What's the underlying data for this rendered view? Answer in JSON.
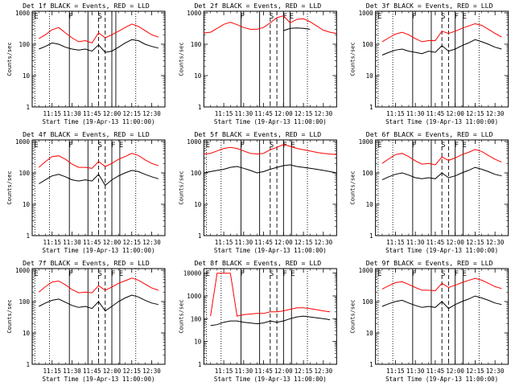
{
  "page": {
    "title": ""
  },
  "colors": {
    "events": "#000000",
    "lld": "#ff0000",
    "axis": "#000000"
  },
  "shared_axes": {
    "xlabel": "Start Time (19-Apr-13 11:00:00)",
    "ylabel": "Counts/sec",
    "x_tick_labels": [
      "11:15",
      "11:30",
      "11:45",
      "12:00",
      "12:15",
      "12:30"
    ],
    "x_range_minutes": [
      0,
      100
    ],
    "y_scale": "log",
    "y_tick_labels": [
      "1",
      "10",
      "100",
      "1000"
    ],
    "y_tick_labels_det8": [
      "1",
      "10",
      "100",
      "1000",
      "10000"
    ]
  },
  "chart_data": [
    {
      "type": "line",
      "title": "Det 1f BLACK = Events, RED = LLD",
      "xlabel": "Start Time (19-Apr-13 11:00:00)",
      "ylabel": "Counts/sec",
      "x": [
        5,
        10,
        15,
        20,
        25,
        30,
        35,
        40,
        45,
        50,
        55,
        60,
        65,
        70,
        75,
        80,
        85,
        90,
        95
      ],
      "series": [
        {
          "name": "Events",
          "color": "#000000",
          "values": [
            70,
            85,
            110,
            100,
            80,
            70,
            65,
            70,
            60,
            95,
            55,
            60,
            80,
            110,
            140,
            130,
            100,
            85,
            75
          ]
        },
        {
          "name": "LLD",
          "color": "#ff0000",
          "values": [
            150,
            200,
            290,
            340,
            230,
            160,
            120,
            130,
            110,
            230,
            160,
            200,
            260,
            340,
            440,
            370,
            270,
            200,
            170
          ]
        }
      ],
      "markers": [
        {
          "label": "E",
          "x": 2,
          "style": "dotted"
        },
        {
          "label": "",
          "x": 13,
          "style": "dotted"
        },
        {
          "label": "F",
          "x": 28,
          "style": "solid"
        },
        {
          "label": "",
          "x": 42,
          "style": "solid"
        },
        {
          "label": "S",
          "x": 50,
          "style": "dashed"
        },
        {
          "label": "",
          "x": 55,
          "style": "dashed"
        },
        {
          "label": "",
          "x": 60,
          "style": "solid"
        },
        {
          "label": "",
          "x": 63,
          "style": "solid"
        },
        {
          "label": "",
          "x": 78,
          "style": "dotted"
        }
      ]
    },
    {
      "type": "line",
      "title": "Det 2f BLACK = Events, RED = LLD",
      "xlabel": "Start Time (19-Apr-13 11:00:00)",
      "ylabel": "Counts/sec",
      "x": [
        0,
        5,
        10,
        15,
        20,
        25,
        30,
        35,
        40,
        45,
        50,
        55,
        60,
        65,
        70,
        75,
        80,
        85,
        90,
        95,
        100
      ],
      "series": [
        {
          "name": "Events",
          "color": "#000000",
          "values": [
            0,
            0,
            0,
            0,
            0,
            0,
            0,
            0,
            0,
            0,
            0,
            0,
            270,
            320,
            330,
            320,
            300,
            0,
            0,
            0,
            0
          ]
        },
        {
          "name": "LLD",
          "color": "#ff0000",
          "values": [
            230,
            240,
            320,
            430,
            500,
            420,
            340,
            300,
            300,
            340,
            480,
            700,
            800,
            480,
            620,
            650,
            520,
            380,
            280,
            240,
            220
          ]
        }
      ],
      "markers": [
        {
          "label": "F",
          "x": 28,
          "style": "solid"
        },
        {
          "label": "",
          "x": 42,
          "style": "solid"
        },
        {
          "label": "S",
          "x": 50,
          "style": "dashed"
        },
        {
          "label": "",
          "x": 55,
          "style": "dashed"
        },
        {
          "label": "F",
          "x": 60,
          "style": "solid"
        },
        {
          "label": "E",
          "x": 65,
          "style": "solid"
        },
        {
          "label": "",
          "x": 78,
          "style": "dotted"
        }
      ]
    },
    {
      "type": "line",
      "title": "Det 3f BLACK = Events, RED = LLD",
      "xlabel": "Start Time (19-Apr-13 11:00:00)",
      "ylabel": "Counts/sec",
      "x": [
        5,
        10,
        15,
        20,
        25,
        30,
        35,
        40,
        45,
        50,
        55,
        60,
        65,
        70,
        75,
        80,
        85,
        90,
        95
      ],
      "series": [
        {
          "name": "Events",
          "color": "#000000",
          "values": [
            45,
            55,
            65,
            70,
            60,
            55,
            50,
            60,
            55,
            90,
            60,
            70,
            90,
            110,
            140,
            120,
            100,
            80,
            70
          ]
        },
        {
          "name": "LLD",
          "color": "#ff0000",
          "values": [
            120,
            160,
            210,
            240,
            200,
            150,
            120,
            130,
            130,
            260,
            220,
            260,
            320,
            380,
            450,
            400,
            300,
            220,
            170
          ]
        }
      ],
      "markers": [
        {
          "label": "E",
          "x": 2,
          "style": "dotted"
        },
        {
          "label": "",
          "x": 13,
          "style": "dotted"
        },
        {
          "label": "F",
          "x": 28,
          "style": "solid"
        },
        {
          "label": "",
          "x": 42,
          "style": "solid"
        },
        {
          "label": "S",
          "x": 50,
          "style": "dashed"
        },
        {
          "label": "",
          "x": 55,
          "style": "dashed"
        },
        {
          "label": "F",
          "x": 60,
          "style": "solid"
        },
        {
          "label": "E",
          "x": 66,
          "style": "solid"
        },
        {
          "label": "",
          "x": 78,
          "style": "dotted"
        }
      ]
    },
    {
      "type": "line",
      "title": "Det 4f BLACK = Events, RED = LLD",
      "xlabel": "Start Time (19-Apr-13 11:00:00)",
      "ylabel": "Counts/sec",
      "x": [
        5,
        10,
        15,
        20,
        25,
        30,
        35,
        40,
        45,
        50,
        55,
        60,
        65,
        70,
        75,
        80,
        85,
        90,
        95
      ],
      "series": [
        {
          "name": "Events",
          "color": "#000000",
          "values": [
            45,
            60,
            80,
            90,
            75,
            60,
            55,
            60,
            55,
            90,
            40,
            60,
            80,
            100,
            120,
            110,
            90,
            75,
            65
          ]
        },
        {
          "name": "LLD",
          "color": "#ff0000",
          "values": [
            150,
            230,
            330,
            350,
            270,
            190,
            150,
            150,
            140,
            230,
            160,
            200,
            270,
            330,
            420,
            360,
            260,
            200,
            170
          ]
        }
      ],
      "markers": [
        {
          "label": "E",
          "x": 2,
          "style": "dotted"
        },
        {
          "label": "",
          "x": 13,
          "style": "dotted"
        },
        {
          "label": "F",
          "x": 28,
          "style": "solid"
        },
        {
          "label": "",
          "x": 42,
          "style": "solid"
        },
        {
          "label": "S",
          "x": 50,
          "style": "dashed"
        },
        {
          "label": "",
          "x": 55,
          "style": "dashed"
        },
        {
          "label": "F",
          "x": 60,
          "style": "solid"
        },
        {
          "label": "E",
          "x": 66,
          "style": "solid"
        },
        {
          "label": "",
          "x": 78,
          "style": "dotted"
        }
      ]
    },
    {
      "type": "line",
      "title": "Det 5f BLACK = Events, RED = LLD",
      "xlabel": "Start Time (19-Apr-13 11:00:00)",
      "ylabel": "Counts/sec",
      "x": [
        0,
        5,
        10,
        15,
        20,
        25,
        30,
        35,
        40,
        45,
        50,
        55,
        60,
        65,
        70,
        75,
        80,
        85,
        90,
        95,
        100
      ],
      "series": [
        {
          "name": "Events",
          "color": "#000000",
          "values": [
            100,
            110,
            120,
            130,
            150,
            160,
            140,
            120,
            100,
            110,
            130,
            150,
            170,
            180,
            160,
            150,
            140,
            130,
            120,
            110,
            100
          ]
        },
        {
          "name": "LLD",
          "color": "#ff0000",
          "values": [
            400,
            420,
            500,
            600,
            650,
            600,
            500,
            420,
            400,
            420,
            550,
            650,
            800,
            700,
            600,
            550,
            500,
            450,
            420,
            400,
            380
          ]
        }
      ],
      "markers": [
        {
          "label": "E",
          "x": 2,
          "style": "dotted"
        },
        {
          "label": "",
          "x": 13,
          "style": "dotted"
        },
        {
          "label": "F",
          "x": 28,
          "style": "solid"
        },
        {
          "label": "",
          "x": 42,
          "style": "solid"
        },
        {
          "label": "S",
          "x": 50,
          "style": "dashed"
        },
        {
          "label": "",
          "x": 55,
          "style": "dashed"
        },
        {
          "label": "F",
          "x": 60,
          "style": "solid"
        },
        {
          "label": "E",
          "x": 66,
          "style": "solid"
        },
        {
          "label": "",
          "x": 78,
          "style": "dotted"
        }
      ]
    },
    {
      "type": "line",
      "title": "Det 6f BLACK = Events, RED = LLD",
      "xlabel": "Start Time (19-Apr-13 11:00:00)",
      "ylabel": "Counts/sec",
      "x": [
        5,
        10,
        15,
        20,
        25,
        30,
        35,
        40,
        45,
        50,
        55,
        60,
        65,
        70,
        75,
        80,
        85,
        90,
        95
      ],
      "series": [
        {
          "name": "Events",
          "color": "#000000",
          "values": [
            60,
            75,
            90,
            100,
            85,
            70,
            65,
            70,
            65,
            100,
            70,
            80,
            100,
            120,
            150,
            130,
            110,
            90,
            80
          ]
        },
        {
          "name": "LLD",
          "color": "#ff0000",
          "values": [
            200,
            280,
            380,
            420,
            330,
            240,
            190,
            200,
            180,
            320,
            250,
            300,
            380,
            450,
            560,
            480,
            360,
            270,
            220
          ]
        }
      ],
      "markers": [
        {
          "label": "E",
          "x": 2,
          "style": "dotted"
        },
        {
          "label": "",
          "x": 13,
          "style": "dotted"
        },
        {
          "label": "F",
          "x": 28,
          "style": "solid"
        },
        {
          "label": "",
          "x": 42,
          "style": "solid"
        },
        {
          "label": "S",
          "x": 50,
          "style": "dashed"
        },
        {
          "label": "",
          "x": 55,
          "style": "dashed"
        },
        {
          "label": "F",
          "x": 60,
          "style": "solid"
        },
        {
          "label": "E",
          "x": 66,
          "style": "solid"
        },
        {
          "label": "",
          "x": 78,
          "style": "dotted"
        }
      ]
    },
    {
      "type": "line",
      "title": "Det 7f BLACK = Events, RED = LLD",
      "xlabel": "Start Time (19-Apr-13 11:00:00)",
      "ylabel": "Counts/sec",
      "x": [
        5,
        10,
        15,
        20,
        25,
        30,
        35,
        40,
        45,
        50,
        55,
        60,
        65,
        70,
        75,
        80,
        85,
        90,
        95
      ],
      "series": [
        {
          "name": "Events",
          "color": "#000000",
          "values": [
            70,
            90,
            110,
            120,
            95,
            75,
            65,
            70,
            60,
            100,
            50,
            70,
            100,
            130,
            160,
            140,
            110,
            90,
            80
          ]
        },
        {
          "name": "LLD",
          "color": "#ff0000",
          "values": [
            200,
            300,
            420,
            450,
            340,
            240,
            190,
            200,
            190,
            320,
            230,
            290,
            380,
            460,
            560,
            480,
            360,
            270,
            230
          ]
        }
      ],
      "markers": [
        {
          "label": "E",
          "x": 2,
          "style": "dotted"
        },
        {
          "label": "",
          "x": 13,
          "style": "dotted"
        },
        {
          "label": "F",
          "x": 28,
          "style": "solid"
        },
        {
          "label": "",
          "x": 42,
          "style": "solid"
        },
        {
          "label": "S",
          "x": 50,
          "style": "dashed"
        },
        {
          "label": "",
          "x": 55,
          "style": "dashed"
        },
        {
          "label": "F",
          "x": 60,
          "style": "solid"
        },
        {
          "label": "E",
          "x": 66,
          "style": "solid"
        },
        {
          "label": "",
          "x": 78,
          "style": "dotted"
        }
      ]
    },
    {
      "type": "line",
      "title": "Det 8f BLACK = Events, RED = LLD",
      "xlabel": "Start Time (19-Apr-13 11:00:00)",
      "ylabel": "Counts/sec",
      "x": [
        5,
        10,
        15,
        20,
        25,
        30,
        35,
        40,
        45,
        50,
        55,
        60,
        65,
        70,
        75,
        80,
        85,
        90,
        95
      ],
      "series": [
        {
          "name": "Events",
          "color": "#000000",
          "values": [
            50,
            55,
            70,
            80,
            80,
            70,
            65,
            60,
            65,
            80,
            70,
            80,
            100,
            120,
            130,
            120,
            110,
            100,
            90
          ]
        },
        {
          "name": "LLD",
          "color": "#ff0000",
          "values": [
            130,
            10000,
            10000,
            10000,
            130,
            150,
            160,
            170,
            170,
            200,
            200,
            220,
            260,
            300,
            300,
            280,
            250,
            220,
            200
          ]
        }
      ],
      "markers": [
        {
          "label": "E",
          "x": 2,
          "style": "dotted"
        },
        {
          "label": "",
          "x": 13,
          "style": "dotted"
        },
        {
          "label": "F",
          "x": 28,
          "style": "solid"
        },
        {
          "label": "",
          "x": 42,
          "style": "solid"
        },
        {
          "label": "S",
          "x": 50,
          "style": "dashed"
        },
        {
          "label": "",
          "x": 55,
          "style": "dashed"
        },
        {
          "label": "F",
          "x": 60,
          "style": "solid"
        },
        {
          "label": "E",
          "x": 66,
          "style": "solid"
        },
        {
          "label": "",
          "x": 78,
          "style": "dotted"
        }
      ]
    },
    {
      "type": "line",
      "title": "Det 9f BLACK = Events, RED = LLD",
      "xlabel": "Start Time (19-Apr-13 11:00:00)",
      "ylabel": "Counts/sec",
      "x": [
        5,
        10,
        15,
        20,
        25,
        30,
        35,
        40,
        45,
        50,
        55,
        60,
        65,
        70,
        75,
        80,
        85,
        90,
        95
      ],
      "series": [
        {
          "name": "Events",
          "color": "#000000",
          "values": [
            70,
            85,
            100,
            110,
            90,
            75,
            65,
            70,
            65,
            100,
            60,
            80,
            100,
            120,
            150,
            130,
            110,
            90,
            80
          ]
        },
        {
          "name": "LLD",
          "color": "#ff0000",
          "values": [
            250,
            320,
            400,
            430,
            350,
            280,
            230,
            230,
            220,
            380,
            280,
            330,
            400,
            470,
            550,
            480,
            380,
            300,
            260
          ]
        }
      ],
      "markers": [
        {
          "label": "E",
          "x": 2,
          "style": "dotted"
        },
        {
          "label": "",
          "x": 13,
          "style": "dotted"
        },
        {
          "label": "F",
          "x": 28,
          "style": "solid"
        },
        {
          "label": "",
          "x": 42,
          "style": "solid"
        },
        {
          "label": "S",
          "x": 50,
          "style": "dashed"
        },
        {
          "label": "",
          "x": 55,
          "style": "dashed"
        },
        {
          "label": "F",
          "x": 60,
          "style": "solid"
        },
        {
          "label": "E",
          "x": 66,
          "style": "solid"
        },
        {
          "label": "",
          "x": 78,
          "style": "dotted"
        }
      ]
    }
  ]
}
